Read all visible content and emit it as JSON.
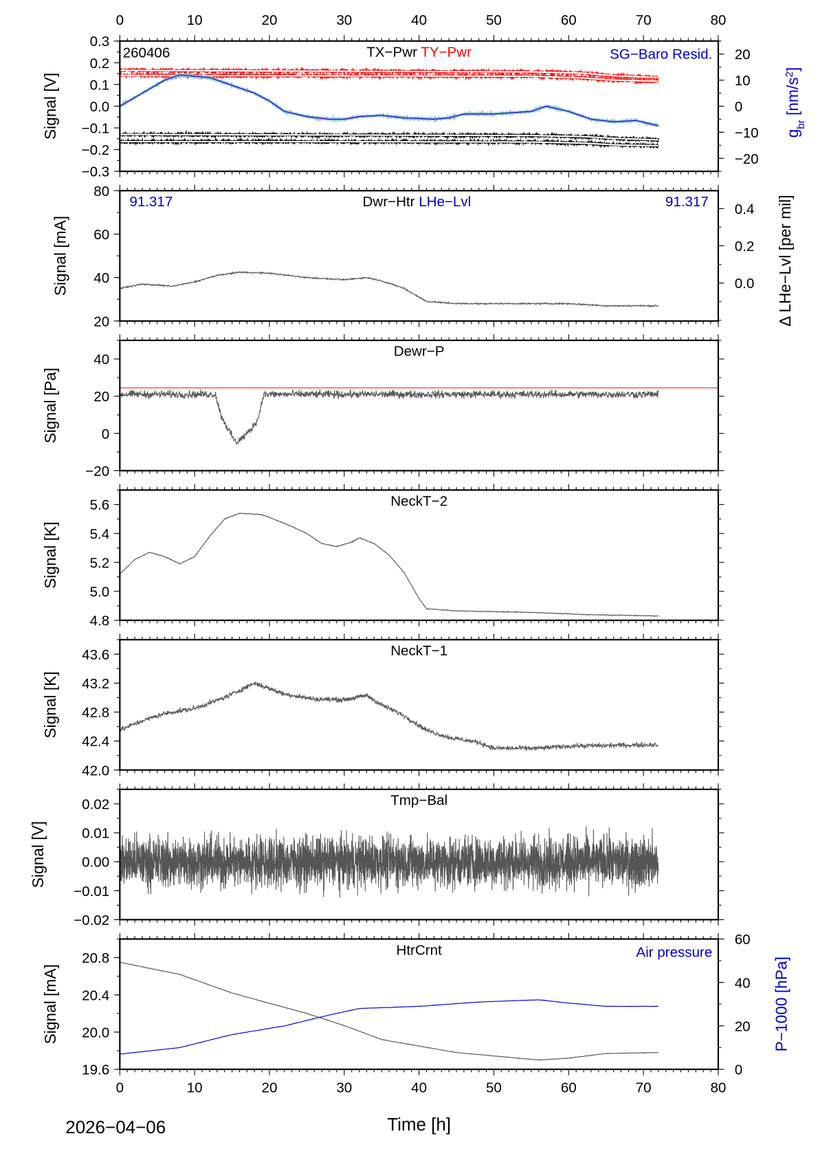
{
  "station_code": "260406",
  "date_label": "2026−04−06",
  "x_axis": {
    "label": "Time [h]",
    "xlim": [
      0,
      80
    ],
    "ticks": [
      0,
      10,
      20,
      30,
      40,
      50,
      60,
      70,
      80
    ]
  },
  "chart_data": [
    {
      "type": "line",
      "title_parts": [
        {
          "text": "TX−Pwr",
          "color": "#000000"
        },
        {
          "text": "TY−Pwr",
          "color": "#ff0000"
        }
      ],
      "ylabel": "Signal [V]",
      "ylim": [
        -0.3,
        0.3
      ],
      "yticks": [
        0.3,
        0.2,
        0.1,
        0.0,
        -0.1,
        -0.2,
        -0.3
      ],
      "ytick_fmt": 1,
      "right_axis": {
        "label": "g_br [nm/s²]",
        "ylim": [
          -25,
          25
        ],
        "ticks": [
          20,
          10,
          0,
          -10,
          -20
        ],
        "color": "#0000cc",
        "title": "SG−Baro Resid."
      },
      "series": [
        {
          "name": "TY-Pwr",
          "color": "#ff0000",
          "noise": 0.012,
          "band": true,
          "points": [
            [
              0,
              0.165
            ],
            [
              20,
              0.162
            ],
            [
              55,
              0.158
            ],
            [
              62,
              0.152
            ],
            [
              66,
              0.14
            ],
            [
              72,
              0.132
            ]
          ]
        },
        {
          "name": "TY-Pwr",
          "color": "#ff0000",
          "noise": 0.012,
          "band": true,
          "points": [
            [
              0,
              0.142
            ],
            [
              20,
              0.14
            ],
            [
              55,
              0.138
            ],
            [
              62,
              0.13
            ],
            [
              66,
              0.12
            ],
            [
              72,
              0.115
            ]
          ]
        },
        {
          "name": "TX-Pwr",
          "color": "#000000",
          "noise": 0.012,
          "band": true,
          "points": [
            [
              0,
              -0.13
            ],
            [
              20,
              -0.132
            ],
            [
              55,
              -0.135
            ],
            [
              62,
              -0.14
            ],
            [
              66,
              -0.148
            ],
            [
              72,
              -0.155
            ]
          ]
        },
        {
          "name": "TX-Pwr",
          "color": "#000000",
          "noise": 0.012,
          "band": true,
          "points": [
            [
              0,
              -0.163
            ],
            [
              20,
              -0.163
            ],
            [
              55,
              -0.165
            ],
            [
              62,
              -0.17
            ],
            [
              66,
              -0.178
            ],
            [
              72,
              -0.182
            ]
          ]
        },
        {
          "name": "SG−Baro Resid.",
          "color": "#0000cc",
          "axis": "right",
          "noise": 0.4,
          "halo": "#8fbfd6",
          "points": [
            [
              0,
              0
            ],
            [
              3,
              5
            ],
            [
              6,
              10
            ],
            [
              8,
              12
            ],
            [
              12,
              11
            ],
            [
              15,
              8
            ],
            [
              18,
              5
            ],
            [
              20,
              2
            ],
            [
              22,
              -2
            ],
            [
              25,
              -4
            ],
            [
              28,
              -5
            ],
            [
              30,
              -5
            ],
            [
              32,
              -4
            ],
            [
              35,
              -3.5
            ],
            [
              38,
              -4.5
            ],
            [
              42,
              -5
            ],
            [
              44,
              -4.5
            ],
            [
              46,
              -3
            ],
            [
              50,
              -3
            ],
            [
              55,
              -2
            ],
            [
              57,
              0
            ],
            [
              60,
              -2
            ],
            [
              63,
              -5
            ],
            [
              66,
              -6
            ],
            [
              69,
              -5.5
            ],
            [
              72,
              -7.5
            ]
          ]
        }
      ]
    },
    {
      "type": "line",
      "title_parts": [
        {
          "text": "Dwr−Htr",
          "color": "#000000"
        },
        {
          "text": "LHe−Lvl",
          "color": "#0000cc"
        }
      ],
      "corner_left": "91.317",
      "corner_right": "91.317",
      "ylabel": "Signal [mA]",
      "ylim": [
        20,
        80
      ],
      "yticks": [
        80,
        60,
        40,
        20
      ],
      "ytick_fmt": 0,
      "right_axis": {
        "label": "Δ LHe−Lvl [per mil]",
        "ylim": [
          -0.204,
          0.496
        ],
        "ticks": [
          0.4,
          0.2,
          0.0
        ],
        "color": "#000000"
      },
      "series": [
        {
          "name": "Dwr−Htr",
          "color": "#555555",
          "noise": 0.5,
          "points": [
            [
              0,
              35
            ],
            [
              3,
              37
            ],
            [
              7,
              36
            ],
            [
              10,
              38
            ],
            [
              13,
              41
            ],
            [
              16,
              42.5
            ],
            [
              20,
              42
            ],
            [
              25,
              40
            ],
            [
              30,
              39
            ],
            [
              33,
              40
            ],
            [
              35,
              38.5
            ],
            [
              38,
              35
            ],
            [
              41,
              29
            ],
            [
              45,
              28
            ],
            [
              60,
              28
            ],
            [
              65,
              27
            ],
            [
              72,
              27
            ]
          ]
        }
      ]
    },
    {
      "type": "line",
      "title_parts": [
        {
          "text": "Dewr−P",
          "color": "#000000"
        }
      ],
      "ylabel": "Signal [Pa]",
      "ylim": [
        -20,
        50
      ],
      "yticks": [
        40,
        20,
        0,
        -20
      ],
      "ytick_fmt": 0,
      "reference_line": {
        "value": 24.5,
        "color": "#ff0000"
      },
      "series": [
        {
          "name": "Dewr−P",
          "color": "#555555",
          "noise": 3,
          "points": [
            [
              0,
              21
            ],
            [
              12.8,
              21
            ],
            [
              13.5,
              10
            ],
            [
              14.5,
              2
            ],
            [
              15.5,
              -5
            ],
            [
              16.5,
              -2
            ],
            [
              17.5,
              2
            ],
            [
              18.5,
              8
            ],
            [
              19.2,
              21
            ],
            [
              72,
              21
            ]
          ]
        }
      ]
    },
    {
      "type": "line",
      "title_parts": [
        {
          "text": "NeckT−2",
          "color": "#000000"
        }
      ],
      "ylabel": "Signal [K]",
      "ylim": [
        4.8,
        5.7
      ],
      "yticks": [
        5.6,
        5.4,
        5.2,
        5.0,
        4.8
      ],
      "ytick_fmt": 1,
      "series": [
        {
          "name": "NeckT−2",
          "color": "#555555",
          "noise": 0.004,
          "points": [
            [
              0,
              5.12
            ],
            [
              2,
              5.22
            ],
            [
              4,
              5.27
            ],
            [
              6,
              5.24
            ],
            [
              8,
              5.19
            ],
            [
              10,
              5.24
            ],
            [
              12,
              5.38
            ],
            [
              14,
              5.5
            ],
            [
              16,
              5.54
            ],
            [
              19,
              5.53
            ],
            [
              22,
              5.47
            ],
            [
              25,
              5.4
            ],
            [
              27,
              5.33
            ],
            [
              29,
              5.31
            ],
            [
              31,
              5.34
            ],
            [
              32,
              5.37
            ],
            [
              34,
              5.33
            ],
            [
              36,
              5.25
            ],
            [
              38,
              5.13
            ],
            [
              40,
              4.95
            ],
            [
              41,
              4.88
            ],
            [
              45,
              4.865
            ],
            [
              55,
              4.855
            ],
            [
              62,
              4.84
            ],
            [
              72,
              4.83
            ]
          ]
        }
      ]
    },
    {
      "type": "line",
      "title_parts": [
        {
          "text": "NeckT−1",
          "color": "#000000"
        }
      ],
      "ylabel": "Signal [K]",
      "ylim": [
        42.0,
        43.8
      ],
      "yticks": [
        43.6,
        43.2,
        42.8,
        42.4,
        42.0
      ],
      "ytick_fmt": 1,
      "series": [
        {
          "name": "NeckT−1",
          "color": "#555555",
          "noise": 0.05,
          "points": [
            [
              0,
              42.55
            ],
            [
              3,
              42.68
            ],
            [
              6,
              42.78
            ],
            [
              10,
              42.85
            ],
            [
              14,
              43.0
            ],
            [
              17,
              43.15
            ],
            [
              18,
              43.2
            ],
            [
              22,
              43.05
            ],
            [
              26,
              42.98
            ],
            [
              30,
              42.97
            ],
            [
              33,
              43.03
            ],
            [
              35,
              42.9
            ],
            [
              38,
              42.75
            ],
            [
              41,
              42.55
            ],
            [
              44,
              42.45
            ],
            [
              48,
              42.38
            ],
            [
              50,
              42.3
            ],
            [
              56,
              42.3
            ],
            [
              60,
              42.33
            ],
            [
              72,
              42.35
            ]
          ]
        }
      ]
    },
    {
      "type": "line",
      "title_parts": [
        {
          "text": "Tmp−Bal",
          "color": "#000000"
        }
      ],
      "ylabel": "Signal [V]",
      "ylim": [
        -0.02,
        0.025
      ],
      "yticks": [
        0.02,
        0.01,
        0.0,
        -0.01,
        -0.02
      ],
      "ytick_fmt": 2,
      "series": [
        {
          "name": "Tmp−Bal",
          "color": "#555555",
          "noise": 0.013,
          "dense": true,
          "points": [
            [
              0,
              0
            ],
            [
              72,
              0
            ]
          ]
        }
      ]
    },
    {
      "type": "line",
      "title_parts": [
        {
          "text": "HtrCrnt",
          "color": "#000000"
        }
      ],
      "ylabel": "Signal [mA]",
      "ylim": [
        19.6,
        21.0
      ],
      "yticks": [
        20.8,
        20.4,
        20.0,
        19.6
      ],
      "ytick_fmt": 1,
      "right_axis": {
        "label": "P−1000 [hPa]",
        "ylim": [
          0,
          60
        ],
        "ticks": [
          60,
          40,
          20,
          0
        ],
        "color": "#0000cc",
        "title": "Air pressure"
      },
      "series": [
        {
          "name": "HtrCrnt",
          "color": "#555555",
          "noise": 0.004,
          "points": [
            [
              0,
              20.75
            ],
            [
              8,
              20.62
            ],
            [
              15,
              20.42
            ],
            [
              25,
              20.2
            ],
            [
              30,
              20.07
            ],
            [
              35,
              19.92
            ],
            [
              45,
              19.78
            ],
            [
              56,
              19.7
            ],
            [
              60,
              19.72
            ],
            [
              65,
              19.77
            ],
            [
              72,
              19.78
            ]
          ]
        },
        {
          "name": "Air pressure",
          "color": "#0000cc",
          "axis": "right",
          "noise": 0.15,
          "points": [
            [
              0,
              7
            ],
            [
              8,
              10
            ],
            [
              15,
              16
            ],
            [
              22,
              20
            ],
            [
              28,
              25
            ],
            [
              32,
              28
            ],
            [
              40,
              29
            ],
            [
              48,
              31
            ],
            [
              56,
              32
            ],
            [
              60,
              30.5
            ],
            [
              65,
              29
            ],
            [
              72,
              29
            ]
          ]
        }
      ]
    }
  ]
}
